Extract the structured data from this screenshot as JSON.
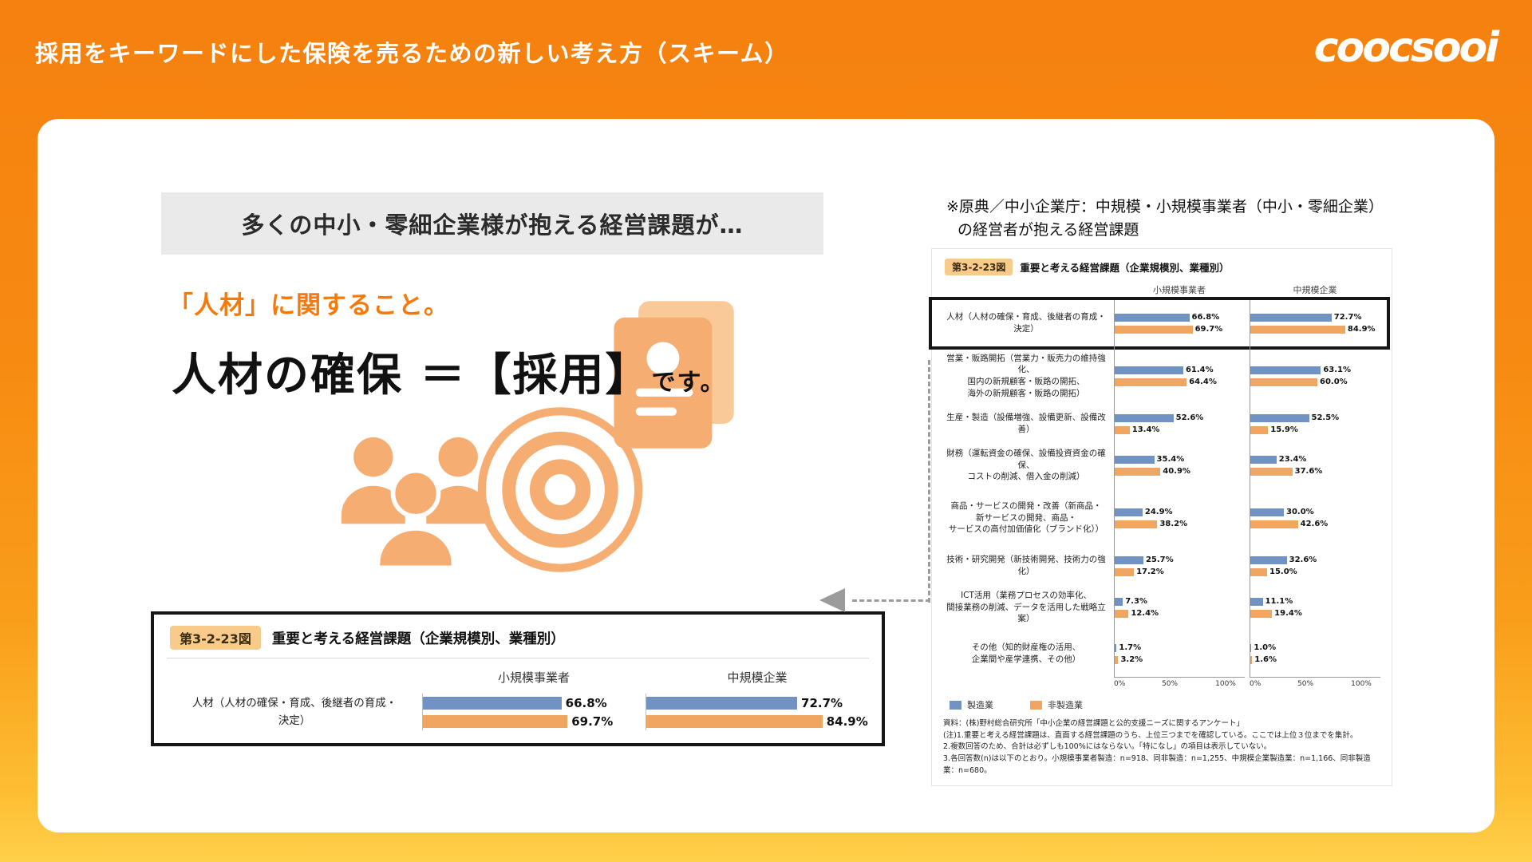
{
  "header": {
    "title": "採用をキーワードにした保険を売るための新しい考え方（スキーム）",
    "logo_text": "coocsooi"
  },
  "content": {
    "banner": "多くの中小・零細企業様が抱える経営課題が…",
    "highlight_line": "「人材」に関すること。",
    "statement_main": "人材の確保 ＝【採用】",
    "statement_suffix": "です。",
    "source_note_line1": "※原典／中小企業庁：中規模・小規模事業者（中小・零細企業）",
    "source_note_line2": "の経営者が抱える経営課題",
    "icons": {
      "people": "people-icon",
      "target": "target-icon",
      "documents": "documents-icon",
      "decor_color": "#F6AD72"
    }
  },
  "chart_data": {
    "type": "bar",
    "figure_label": "第3-2-23図",
    "title": "重要と考える経営課題（企業規模別、業種別）",
    "group_headers": [
      "小規模事業者",
      "中規模企業"
    ],
    "legend": [
      {
        "name": "製造業",
        "color": "#7193C4"
      },
      {
        "name": "非製造業",
        "color": "#F0A661"
      }
    ],
    "x_ticks": [
      "0%",
      "50%",
      "100%"
    ],
    "xlim": [
      0,
      100
    ],
    "categories": [
      {
        "label_lines": [
          "人材（人材の確保・育成、後継者の育成・",
          "決定）"
        ],
        "small": [
          66.8,
          69.7
        ],
        "medium": [
          72.7,
          84.9
        ],
        "highlighted": true
      },
      {
        "label_lines": [
          "営業・販路開拓（営業力・販売力の維持強化、",
          "国内の新規顧客・販路の開拓、",
          "海外の新規顧客・販路の開拓）"
        ],
        "small": [
          61.4,
          64.4
        ],
        "medium": [
          63.1,
          60.0
        ],
        "highlighted": false
      },
      {
        "label_lines": [
          "生産・製造（設備増強、設備更新、設備改善）"
        ],
        "small": [
          52.6,
          13.4
        ],
        "medium": [
          52.5,
          15.9
        ],
        "highlighted": false
      },
      {
        "label_lines": [
          "財務（運転資金の確保、設備投資資金の確保、",
          "コストの削減、借入金の削減）"
        ],
        "small": [
          35.4,
          40.9
        ],
        "medium": [
          23.4,
          37.6
        ],
        "highlighted": false
      },
      {
        "label_lines": [
          "商品・サービスの開発・改善（新商品・",
          "新サービスの開発、商品・",
          "サービスの高付加価値化（ブランド化））"
        ],
        "small": [
          24.9,
          38.2
        ],
        "medium": [
          30.0,
          42.6
        ],
        "highlighted": false
      },
      {
        "label_lines": [
          "技術・研究開発（新技術開発、技術力の強化）"
        ],
        "small": [
          25.7,
          17.2
        ],
        "medium": [
          32.6,
          15.0
        ],
        "highlighted": false
      },
      {
        "label_lines": [
          "ICT活用（業務プロセスの効率化、",
          "間接業務の削減、データを活用した戦略立案）"
        ],
        "small": [
          7.3,
          12.4
        ],
        "medium": [
          11.1,
          19.4
        ],
        "highlighted": false
      },
      {
        "label_lines": [
          "その他（知的財産権の活用、",
          "企業間や産学連携、その他）"
        ],
        "small": [
          1.7,
          3.2
        ],
        "medium": [
          1.0,
          1.6
        ],
        "highlighted": false
      }
    ],
    "footnotes": [
      "資料：(株)野村総合研究所「中小企業の経営課題と公的支援ニーズに関するアンケート」",
      "(注)1.重要と考える経営課題は、直面する経営課題のうち、上位三つまでを確認している。ここでは上位３位までを集計。",
      "2.複数回答のため、合計は必ずしも100%にはならない。「特になし」の項目は表示していない。",
      "3.各回答数(n)は以下のとおり。小規模事業者製造：n=918、同非製造：n=1,255、中規模企業製造業：n=1,166、同非製造業：n=680。"
    ]
  },
  "zoom_figure": {
    "figure_label": "第3-2-23図",
    "title": "重要と考える経営課題（企業規模別、業種別）",
    "group_headers": [
      "小規模事業者",
      "中規模企業"
    ],
    "category_lines": [
      "人材（人材の確保・育成、後継者の育成・",
      "決定）"
    ],
    "groups": [
      {
        "header": "小規模事業者",
        "values": [
          66.8,
          69.7
        ]
      },
      {
        "header": "中規模企業",
        "values": [
          72.7,
          84.9
        ]
      }
    ],
    "series_names": [
      "製造業",
      "非製造業"
    ]
  }
}
